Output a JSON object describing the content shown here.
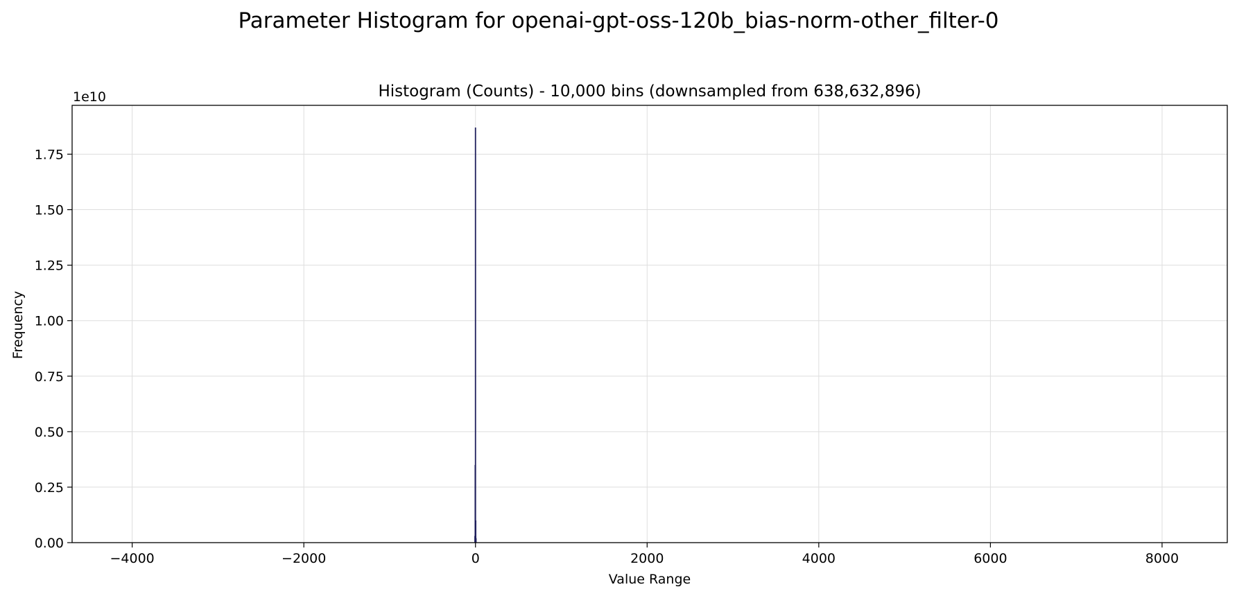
{
  "figure_title": "Parameter Histogram for openai-gpt-oss-120b_bias-norm-other_filter-0",
  "chart_data": {
    "type": "bar",
    "title": "Histogram (Counts) - 10,000 bins (downsampled from 638,632,896)",
    "xlabel": "Value Range",
    "ylabel": "Frequency",
    "y_offset_label": "1e10",
    "xlim": [
      -4700,
      8760
    ],
    "ylim": [
      0,
      1.97
    ],
    "x_ticks": [
      -4000,
      -2000,
      0,
      2000,
      4000,
      6000,
      8000
    ],
    "x_tick_labels": [
      "−4000",
      "−2000",
      "0",
      "2000",
      "4000",
      "6000",
      "8000"
    ],
    "y_ticks": [
      0,
      0.25,
      0.5,
      0.75,
      1.0,
      1.25,
      1.5,
      1.75
    ],
    "y_tick_labels": [
      "0.00",
      "0.25",
      "0.50",
      "0.75",
      "1.00",
      "1.25",
      "1.50",
      "1.75"
    ],
    "grid": true,
    "bar_color": "#1f1f5c",
    "bars": [
      {
        "x": -6,
        "value": 0.03
      },
      {
        "x": -3,
        "value": 0.35
      },
      {
        "x": 0,
        "value": 1.87
      },
      {
        "x": 3,
        "value": 0.1
      },
      {
        "x": 6,
        "value": 0.02
      }
    ]
  }
}
